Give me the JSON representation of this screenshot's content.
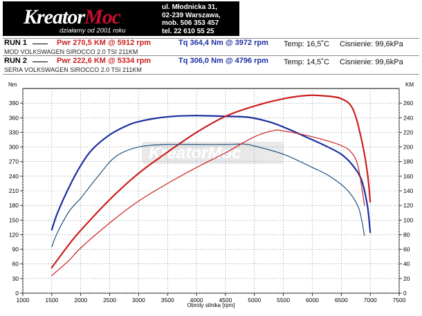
{
  "header": {
    "logo_text_a": "Kreator",
    "logo_text_b": "Moc",
    "logo_tagline": "działamy od 2001 roku",
    "address": [
      "ul. Młodnicka 31,",
      "02-239  Warszawa,",
      "mob.  506 353 457",
      "tel.  22 610 55 25"
    ]
  },
  "runs": [
    {
      "label": "RUN 1",
      "power": "Pwr  270,5 KM @ 5912 rpm",
      "torque": "Tq 364,4 Nm @ 3972 rpm",
      "temp": "Temp: 16,5˚C",
      "pressure": "Cisnienie: 99,6kPa",
      "desc": "MOD VOLKSWAGEN SIROCCO 2.0 TSI 211KM"
    },
    {
      "label": "RUN 2",
      "power": "Pwr  222,6 KM @ 5334 rpm",
      "torque": "Tq 306,0 Nm @ 4796 rpm",
      "temp": "Temp: 14,5˚C",
      "pressure": "Cisnienie: 99,6kPa",
      "desc": "SERIA VOLKSWAGEN SIROCCO 2.0 TSI 211KM"
    }
  ],
  "colors": {
    "power": "#cc1f1f",
    "torque": "#1a2fa0",
    "torque_stock": "#1f4f7a"
  },
  "chart_data": {
    "type": "line",
    "xlabel": "Obroty silnika [rpm]",
    "ylabel_left": "Nm",
    "ylabel_right": "KM",
    "xlim": [
      1000,
      7500
    ],
    "ylim_left": [
      0,
      420
    ],
    "ylim_right": [
      0,
      280
    ],
    "xticks": [
      1000,
      1500,
      2000,
      2500,
      3000,
      3500,
      4000,
      4500,
      5000,
      5500,
      6000,
      6500,
      7000,
      7500
    ],
    "yticks_left": [
      0,
      30,
      60,
      90,
      120,
      150,
      180,
      210,
      240,
      270,
      300,
      330,
      360,
      390
    ],
    "yticks_right": [
      0,
      20,
      40,
      60,
      80,
      100,
      120,
      140,
      160,
      180,
      200,
      220,
      240,
      260
    ],
    "grid": true,
    "series": [
      {
        "axis": "left",
        "color_key": "torque",
        "width": 2.2,
        "x": [
          1500,
          1600,
          1800,
          2000,
          2200,
          2500,
          2800,
          3000,
          3300,
          3600,
          3972,
          4200,
          4500,
          4800,
          5000,
          5300,
          5600,
          5900,
          6200,
          6500,
          6700,
          6850,
          6950,
          7000
        ],
        "y": [
          130,
          165,
          218,
          262,
          295,
          325,
          344,
          352,
          359,
          363,
          364.4,
          364,
          363,
          362,
          359,
          350,
          336,
          320,
          304,
          285,
          262,
          232,
          180,
          125
        ]
      },
      {
        "axis": "right",
        "color_key": "power",
        "width": 2.2,
        "x": [
          1500,
          1800,
          2000,
          2500,
          3000,
          3500,
          4000,
          4500,
          5000,
          5500,
          5912,
          6200,
          6500,
          6700,
          6850,
          6950,
          7000
        ],
        "y": [
          35,
          67,
          86,
          128,
          164,
          193,
          220,
          242,
          256,
          266,
          270.5,
          270,
          266,
          252,
          210,
          165,
          125
        ]
      },
      {
        "axis": "left",
        "color_key": "torque_stock",
        "width": 1.2,
        "x": [
          1500,
          1600,
          1800,
          2000,
          2300,
          2600,
          3000,
          3500,
          4000,
          4500,
          4796,
          5000,
          5500,
          6000,
          6300,
          6600,
          6800,
          6900
        ],
        "y": [
          95,
          125,
          168,
          195,
          240,
          280,
          300,
          305,
          305,
          305,
          306,
          302,
          285,
          258,
          240,
          212,
          175,
          118
        ]
      },
      {
        "axis": "right",
        "color_key": "power",
        "width": 1.2,
        "x": [
          1500,
          1800,
          2000,
          2500,
          3000,
          3500,
          4000,
          4500,
          5000,
          5334,
          5500,
          6000,
          6500,
          6700,
          6800,
          6900
        ],
        "y": [
          24,
          45,
          62,
          96,
          126,
          150,
          172,
          192,
          214,
          222.6,
          222,
          214,
          202,
          190,
          170,
          120
        ]
      }
    ]
  }
}
